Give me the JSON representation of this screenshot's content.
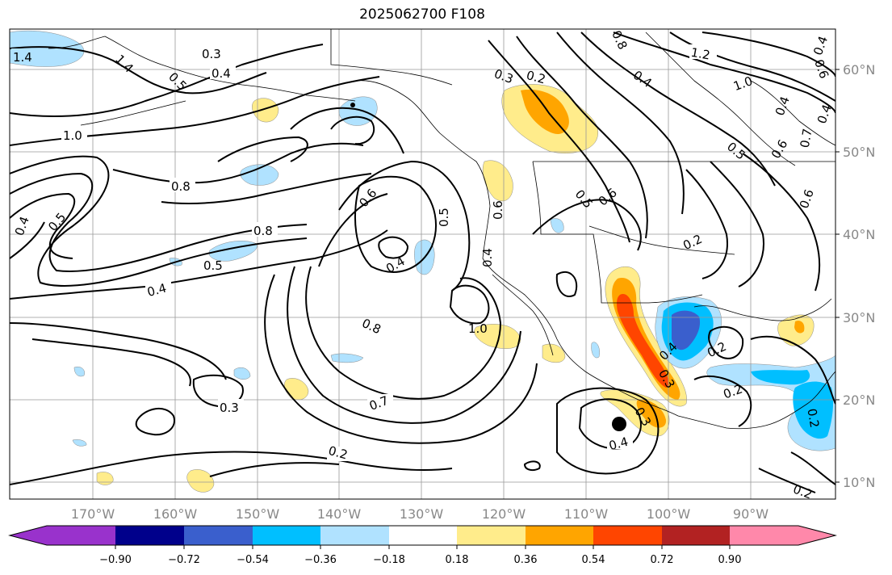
{
  "title": "2025062700 F108",
  "lat_labels": [
    "60°N",
    "50°N",
    "40°N",
    "30°N",
    "20°N",
    "10°N"
  ],
  "lon_labels": [
    "170°W",
    "160°W",
    "150°W",
    "140°W",
    "130°W",
    "120°W",
    "110°W",
    "100°W",
    "90°W"
  ],
  "colorbar": {
    "ticks": [
      "−0.90",
      "−0.72",
      "−0.54",
      "−0.36",
      "−0.18",
      "0.18",
      "0.36",
      "0.54",
      "0.72",
      "0.90"
    ],
    "colors": [
      "#9932cc",
      "#00008b",
      "#3a5fcd",
      "#00bfff",
      "#b0e2ff",
      "#ffffff",
      "#ffec8b",
      "#ffa500",
      "#ff4500",
      "#b22222",
      "#ff88aa"
    ]
  },
  "contour_labels": [
    "1.4",
    "1.4",
    "0.3",
    "0.4",
    "0.5",
    "1.0",
    "0.8",
    "0.4",
    "0.5",
    "0.8",
    "0.5",
    "0.4",
    "0.6",
    "0.4",
    "0.5",
    "0.8",
    "1.0",
    "0.7",
    "0.3",
    "0.2",
    "0.4",
    "0.3",
    "0.2",
    "0.8",
    "0.4",
    "1.2",
    "1.0",
    "0.4",
    "0.6",
    "0.5",
    "0.6",
    "0.5",
    "0.6",
    "0.2",
    "0.6",
    "0.4",
    "0.4",
    "0.3",
    "0.3",
    "0.2",
    "0.2",
    "0.2",
    "0.2",
    "0.7",
    "0.6",
    "0.4",
    "0.4"
  ]
}
